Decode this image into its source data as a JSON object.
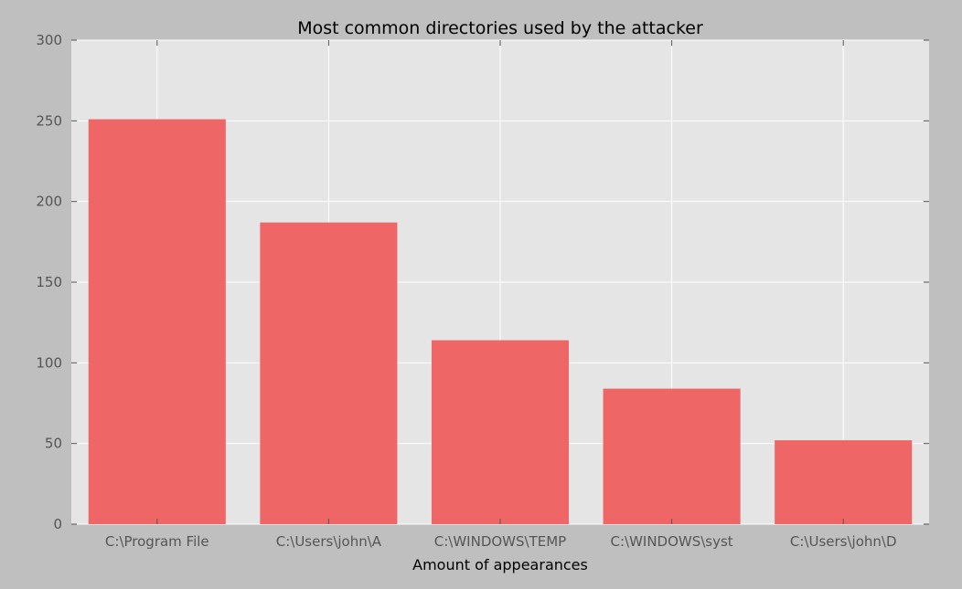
{
  "chart_data": {
    "type": "bar",
    "title": "Most common directories used by the attacker",
    "xlabel": "Amount of appearances",
    "ylabel": "",
    "categories": [
      "C:\\Program File",
      "C:\\Users\\john\\A",
      "C:\\WINDOWS\\TEMP",
      "C:\\WINDOWS\\syst",
      "C:\\Users\\john\\D"
    ],
    "values": [
      251,
      187,
      114,
      84,
      52
    ],
    "ylim": [
      0,
      300
    ],
    "yticks": [
      0,
      50,
      100,
      150,
      200,
      250,
      300
    ],
    "grid": true,
    "legend": "none",
    "colors": {
      "bar": "#ee6666",
      "plot_background": "#e5e5e5",
      "figure_background": "#bfbfbf",
      "grid": "#ffffff"
    }
  }
}
